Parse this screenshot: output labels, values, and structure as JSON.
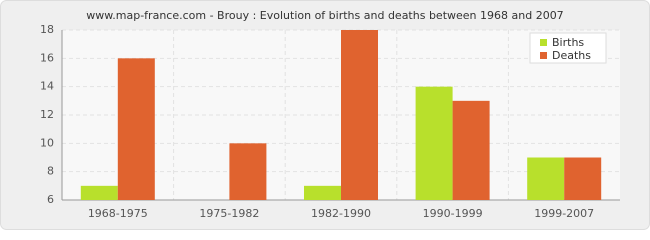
{
  "chart_data": {
    "type": "bar",
    "title": "www.map-france.com - Brouy : Evolution of births and deaths between 1968 and 2007",
    "categories": [
      "1968-1975",
      "1975-1982",
      "1982-1990",
      "1990-1999",
      "1999-2007"
    ],
    "series": [
      {
        "name": "Births",
        "color": "#b8e02c",
        "values": [
          7,
          6,
          7,
          14,
          9
        ]
      },
      {
        "name": "Deaths",
        "color": "#e0632f",
        "values": [
          16,
          10,
          18,
          13,
          9
        ]
      }
    ],
    "ylim": [
      6,
      18
    ],
    "yticks": [
      6,
      8,
      10,
      12,
      14,
      16,
      18
    ],
    "grid": true,
    "legend": "top-right"
  }
}
